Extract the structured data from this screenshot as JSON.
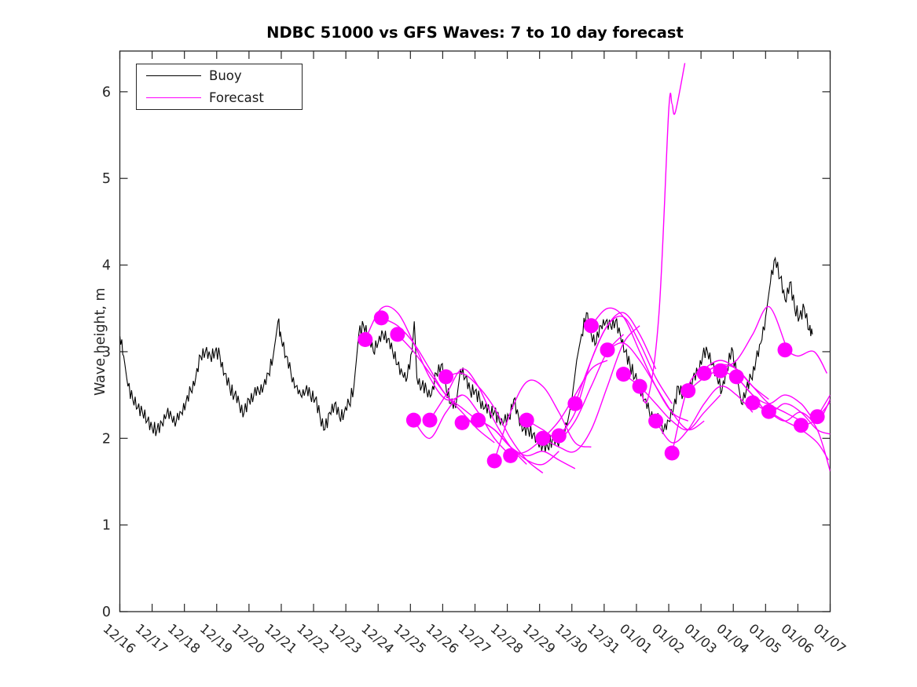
{
  "chart_data": {
    "type": "line",
    "title": "NDBC 51000 vs GFS Waves: 7 to 10 day forecast",
    "xlabel": "",
    "ylabel": "Wave height, m",
    "x_units": "days since 12/16",
    "xlim_days": [
      0,
      22
    ],
    "ylim": [
      0,
      6.47
    ],
    "y_ticks": [
      0,
      1,
      2,
      3,
      4,
      5,
      6
    ],
    "x_tick_labels": [
      "12/16",
      "12/17",
      "12/18",
      "12/19",
      "12/20",
      "12/21",
      "12/22",
      "12/23",
      "12/24",
      "12/25",
      "12/26",
      "12/27",
      "12/28",
      "12/29",
      "12/30",
      "12/31",
      "01/01",
      "01/02",
      "01/03",
      "01/04",
      "01/05",
      "01/06",
      "01/07"
    ],
    "grid": false,
    "legend": {
      "position": "upper-left",
      "entries": [
        {
          "label": "Buoy",
          "color": "#000000"
        },
        {
          "label": "Forecast",
          "color": "#ff00ff"
        }
      ]
    },
    "colors": {
      "buoy": "#000000",
      "forecast": "#ff00ff",
      "axes": "#262626"
    },
    "style_hints": {
      "noise_amplitude": 0.085,
      "marker_radius_px": 9.5,
      "buoy_linewidth": 1.1,
      "forecast_linewidth": 1.4,
      "x_label_rotation_deg": 40
    },
    "buoy_series": {
      "name": "Buoy",
      "x": [
        0,
        0.12,
        0.25,
        0.4,
        0.55,
        0.7,
        0.85,
        1,
        1.15,
        1.3,
        1.45,
        1.6,
        1.75,
        1.9,
        2.05,
        2.2,
        2.35,
        2.5,
        2.65,
        2.8,
        2.95,
        3.1,
        3.25,
        3.4,
        3.55,
        3.7,
        3.85,
        4,
        4.15,
        4.3,
        4.45,
        4.6,
        4.75,
        4.9,
        5,
        5.15,
        5.3,
        5.45,
        5.6,
        5.75,
        5.9,
        6.05,
        6.2,
        6.35,
        6.5,
        6.65,
        6.8,
        6.95,
        7.1,
        7.25,
        7.4,
        7.55,
        7.7,
        7.85,
        8,
        8.15,
        8.3,
        8.45,
        8.6,
        8.75,
        8.9,
        9.05,
        9.12,
        9.2,
        9.35,
        9.5,
        9.65,
        9.8,
        9.95,
        10.1,
        10.25,
        10.4,
        10.55,
        10.7,
        10.85,
        11,
        11.15,
        11.3,
        11.45,
        11.6,
        11.75,
        11.9,
        12.05,
        12.2,
        12.35,
        12.5,
        12.65,
        12.8,
        12.95,
        13.1,
        13.25,
        13.4,
        13.55,
        13.7,
        13.85,
        14,
        14.15,
        14.3,
        14.45,
        14.6,
        14.75,
        14.9,
        15.05,
        15.2,
        15.35,
        15.5,
        15.65,
        15.8,
        15.95,
        16.1,
        16.25,
        16.4,
        16.55,
        16.7,
        16.85,
        17,
        17.15,
        17.3,
        17.45,
        17.6,
        17.75,
        17.9,
        18.05,
        18.2,
        18.35,
        18.5,
        18.65,
        18.8,
        18.95,
        19.1,
        19.25,
        19.4,
        19.55,
        19.7,
        19.85,
        20,
        20.15,
        20.3,
        20.45,
        20.6,
        20.75,
        20.9,
        21.05,
        21.2,
        21.35,
        21.45
      ],
      "y": [
        3.18,
        2.95,
        2.6,
        2.45,
        2.35,
        2.3,
        2.2,
        2.12,
        2.1,
        2.18,
        2.28,
        2.25,
        2.2,
        2.3,
        2.42,
        2.55,
        2.7,
        2.95,
        3.0,
        2.95,
        3.0,
        2.95,
        2.75,
        2.6,
        2.5,
        2.4,
        2.3,
        2.45,
        2.5,
        2.55,
        2.6,
        2.75,
        2.95,
        3.35,
        3.15,
        2.95,
        2.75,
        2.6,
        2.5,
        2.55,
        2.5,
        2.45,
        2.25,
        2.1,
        2.3,
        2.4,
        2.25,
        2.3,
        2.4,
        2.6,
        3.2,
        3.3,
        3.2,
        3.0,
        3.1,
        3.2,
        3.15,
        3.0,
        2.85,
        2.75,
        2.7,
        3.0,
        3.35,
        2.7,
        2.6,
        2.55,
        2.5,
        2.75,
        2.85,
        2.6,
        2.4,
        2.35,
        2.8,
        2.7,
        2.55,
        2.55,
        2.45,
        2.35,
        2.3,
        2.3,
        2.2,
        2.2,
        2.25,
        2.45,
        2.25,
        2.1,
        2.1,
        2.05,
        1.95,
        1.92,
        1.9,
        2.0,
        1.95,
        2.0,
        2.15,
        2.45,
        2.9,
        3.2,
        3.45,
        3.2,
        3.1,
        3.3,
        3.35,
        3.3,
        3.35,
        3.2,
        3.0,
        2.85,
        2.7,
        2.6,
        2.45,
        2.3,
        2.2,
        2.25,
        2.1,
        2.2,
        2.35,
        2.6,
        2.5,
        2.55,
        2.7,
        2.75,
        2.95,
        3.0,
        2.85,
        2.7,
        2.55,
        2.8,
        3.05,
        2.75,
        2.4,
        2.55,
        2.7,
        2.9,
        3.1,
        3.4,
        3.8,
        4.08,
        3.85,
        3.6,
        3.8,
        3.5,
        3.4,
        3.5,
        3.25,
        3.2
      ]
    },
    "forecast_runs": [
      {
        "x": [
          7.6,
          8.1,
          8.6,
          9.1,
          9.6,
          10.1,
          10.6
        ],
        "y": [
          3.14,
          3.5,
          3.45,
          3.1,
          2.7,
          2.45,
          2.5
        ]
      },
      {
        "x": [
          8.1,
          8.6,
          9.1,
          9.6,
          10.1,
          10.6,
          11.1
        ],
        "y": [
          3.39,
          3.3,
          3.1,
          2.8,
          2.5,
          2.35,
          2.2
        ]
      },
      {
        "x": [
          8.6,
          9.1,
          9.6,
          10.1,
          10.6,
          11.1,
          11.6
        ],
        "y": [
          3.2,
          3.0,
          2.75,
          2.5,
          2.3,
          2.1,
          1.95
        ]
      },
      {
        "x": [
          9.1,
          9.6,
          10.1,
          10.6,
          11.1,
          11.6,
          12.1
        ],
        "y": [
          2.21,
          2.0,
          2.3,
          2.5,
          2.3,
          2.0,
          1.8
        ]
      },
      {
        "x": [
          9.6,
          10.1,
          10.6,
          11.1,
          11.6,
          12.1,
          12.6
        ],
        "y": [
          2.21,
          2.5,
          2.8,
          2.6,
          2.2,
          1.9,
          1.7
        ]
      },
      {
        "x": [
          10.1,
          10.6,
          11.1,
          11.6,
          12.1,
          12.6,
          13.1
        ],
        "y": [
          2.71,
          2.75,
          2.6,
          2.35,
          2.0,
          1.75,
          1.6
        ]
      },
      {
        "x": [
          10.6,
          11.1,
          11.6,
          12.1,
          12.6,
          13.1,
          13.6
        ],
        "y": [
          2.18,
          2.2,
          2.1,
          1.9,
          1.75,
          1.7,
          1.85
        ]
      },
      {
        "x": [
          11.1,
          11.6,
          12.1,
          12.6,
          13.1,
          13.6,
          14.1
        ],
        "y": [
          2.21,
          2.1,
          1.9,
          1.8,
          1.85,
          1.75,
          1.65
        ]
      },
      {
        "x": [
          11.6,
          12.1,
          12.6,
          13.1,
          13.6,
          14.1,
          14.6
        ],
        "y": [
          1.74,
          2.3,
          2.65,
          2.6,
          2.3,
          1.95,
          1.9
        ]
      },
      {
        "x": [
          12.1,
          12.6,
          13.1,
          13.6,
          14.1,
          14.6,
          15.1
        ],
        "y": [
          1.8,
          1.85,
          2.0,
          2.2,
          2.5,
          2.8,
          2.9
        ]
      },
      {
        "x": [
          12.6,
          13.1,
          13.6,
          14.1,
          14.6,
          15.1,
          15.6
        ],
        "y": [
          2.21,
          2.1,
          2.0,
          2.2,
          2.6,
          3.0,
          3.2
        ]
      },
      {
        "x": [
          13.1,
          13.6,
          14.1,
          14.6,
          15.1,
          15.6,
          16.1
        ],
        "y": [
          2.0,
          1.9,
          1.85,
          2.1,
          2.6,
          3.1,
          3.3
        ]
      },
      {
        "x": [
          13.6,
          14.1,
          14.6,
          15.1,
          15.6,
          16.1,
          16.6
        ],
        "y": [
          2.03,
          2.3,
          2.9,
          3.3,
          3.45,
          3.2,
          2.8
        ]
      },
      {
        "x": [
          14.1,
          14.6,
          15.1,
          15.6,
          16.1,
          16.6,
          17.1
        ],
        "y": [
          2.4,
          2.9,
          3.3,
          3.4,
          3.1,
          2.7,
          2.4
        ]
      },
      {
        "x": [
          14.6,
          15.1,
          15.6,
          16.1,
          16.6,
          17.1,
          17.6
        ],
        "y": [
          3.3,
          3.5,
          3.4,
          3.0,
          2.6,
          2.3,
          2.2
        ]
      },
      {
        "x": [
          15.1,
          15.6,
          16.1,
          16.6,
          17.1,
          17.6,
          18.1
        ],
        "y": [
          3.02,
          3.1,
          2.9,
          2.6,
          2.3,
          2.1,
          2.2
        ]
      },
      {
        "x": [
          15.6,
          16.1,
          16.6,
          17.1,
          17.6,
          18.1,
          18.6
        ],
        "y": [
          2.74,
          2.6,
          2.4,
          2.2,
          2.1,
          2.3,
          2.5
        ]
      },
      {
        "x": [
          16.1,
          16.35,
          16.7,
          17.0,
          17.1,
          17.2,
          17.5
        ],
        "y": [
          2.6,
          2.45,
          3.45,
          5.78,
          5.86,
          5.76,
          6.33
        ]
      },
      {
        "x": [
          16.6,
          17.1,
          17.6,
          18.1,
          18.6,
          19.1,
          19.6
        ],
        "y": [
          2.2,
          1.95,
          2.1,
          2.4,
          2.6,
          2.5,
          2.3
        ]
      },
      {
        "x": [
          17.1,
          17.6,
          18.1,
          18.6,
          19.1,
          19.6,
          20.1
        ],
        "y": [
          1.83,
          2.6,
          2.8,
          2.9,
          2.8,
          2.6,
          2.45
        ]
      },
      {
        "x": [
          17.6,
          18.1,
          18.6,
          19.1,
          19.6,
          20.1,
          20.6
        ],
        "y": [
          2.55,
          2.7,
          2.8,
          2.9,
          3.2,
          3.52,
          3.1
        ]
      },
      {
        "x": [
          18.1,
          18.6,
          19.1,
          19.6,
          20.1,
          20.6,
          21.1
        ],
        "y": [
          2.75,
          2.85,
          2.8,
          2.6,
          2.4,
          2.3,
          2.2
        ]
      },
      {
        "x": [
          18.6,
          19.1,
          19.6,
          20.1,
          20.6,
          21.1,
          21.6,
          22.0
        ],
        "y": [
          2.78,
          2.7,
          2.5,
          2.4,
          2.5,
          2.4,
          2.2,
          2.45
        ]
      },
      {
        "x": [
          19.1,
          19.6,
          20.1,
          20.6,
          21.1,
          21.6,
          22.0
        ],
        "y": [
          2.71,
          2.5,
          2.3,
          2.4,
          2.3,
          2.1,
          2.05
        ]
      },
      {
        "x": [
          19.6,
          20.1,
          20.6,
          21.1,
          21.6,
          22.0
        ],
        "y": [
          2.41,
          2.3,
          2.2,
          2.3,
          2.1,
          1.62
        ]
      },
      {
        "x": [
          20.1,
          20.6,
          21.1,
          21.6,
          21.95
        ],
        "y": [
          2.31,
          2.2,
          2.1,
          1.95,
          1.75
        ]
      },
      {
        "x": [
          20.6,
          21.0,
          21.5,
          21.9
        ],
        "y": [
          3.02,
          2.95,
          3.0,
          2.75
        ]
      },
      {
        "x": [
          21.1,
          21.5,
          22.0
        ],
        "y": [
          2.15,
          2.2,
          2.42
        ]
      },
      {
        "x": [
          21.6,
          22.0
        ],
        "y": [
          2.25,
          2.5
        ]
      }
    ],
    "forecast_markers": {
      "x": [
        7.6,
        8.1,
        8.6,
        9.1,
        9.6,
        10.1,
        10.6,
        11.1,
        11.6,
        12.1,
        12.6,
        13.1,
        13.6,
        14.1,
        14.6,
        15.1,
        15.6,
        16.1,
        16.6,
        17.1,
        17.6,
        18.1,
        18.6,
        19.1,
        19.6,
        20.1,
        20.6,
        21.1,
        21.6
      ],
      "y": [
        3.14,
        3.39,
        3.2,
        2.21,
        2.21,
        2.71,
        2.18,
        2.21,
        1.74,
        1.8,
        2.21,
        2.0,
        2.03,
        2.4,
        3.3,
        3.02,
        2.74,
        2.6,
        2.2,
        1.83,
        2.55,
        2.75,
        2.78,
        2.71,
        2.41,
        2.31,
        3.02,
        2.15,
        2.25
      ]
    }
  }
}
